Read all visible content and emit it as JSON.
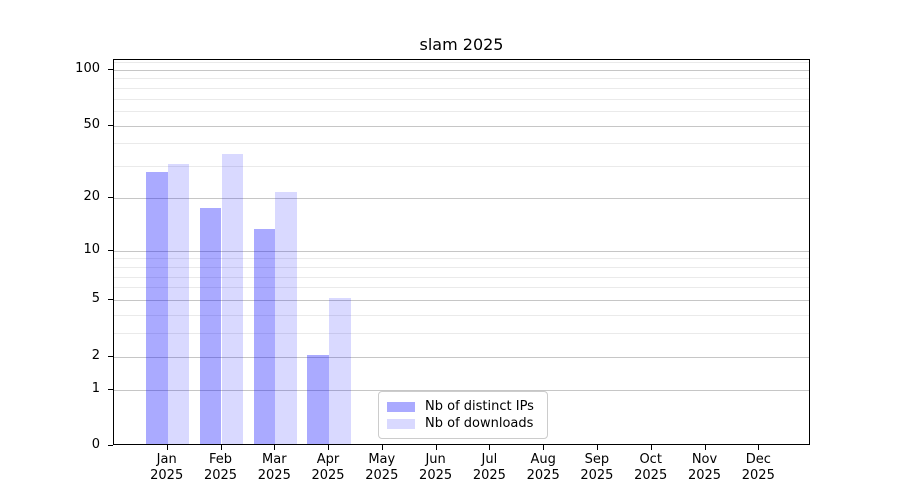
{
  "title": "slam 2025",
  "chart_data": {
    "type": "bar",
    "title": "slam 2025",
    "categories": [
      "Jan 2025",
      "Feb 2025",
      "Mar 2025",
      "Apr 2025",
      "May 2025",
      "Jun 2025",
      "Jul 2025",
      "Aug 2025",
      "Sep 2025",
      "Oct 2025",
      "Nov 2025",
      "Dec 2025"
    ],
    "x_tick_month": [
      "Jan",
      "Feb",
      "Mar",
      "Apr",
      "May",
      "Jun",
      "Jul",
      "Aug",
      "Sep",
      "Oct",
      "Nov",
      "Dec"
    ],
    "x_tick_year": "2025",
    "series": [
      {
        "name": "Nb of distinct IPs",
        "color": "#aaaaff",
        "color_rgba": "rgba(0,0,255,0.333)",
        "values": [
          27,
          17,
          13,
          2,
          0,
          0,
          0,
          0,
          0,
          0,
          0,
          0
        ]
      },
      {
        "name": "Nb of downloads",
        "color": "#d9d9ff",
        "color_rgba": "rgba(0,0,255,0.149)",
        "values": [
          30,
          34,
          21,
          5,
          0,
          0,
          0,
          0,
          0,
          0,
          0,
          0
        ]
      }
    ],
    "yscale": "log1p",
    "ylim": [
      0,
      113
    ],
    "yticks_major": [
      0,
      1,
      2,
      5,
      10,
      20,
      50,
      100
    ],
    "yticks_minor": [
      3,
      4,
      6,
      7,
      8,
      9,
      30,
      40,
      60,
      70,
      80,
      90,
      110
    ],
    "grid": "both",
    "legend_position": "lower center",
    "xlabel": "",
    "ylabel": ""
  }
}
